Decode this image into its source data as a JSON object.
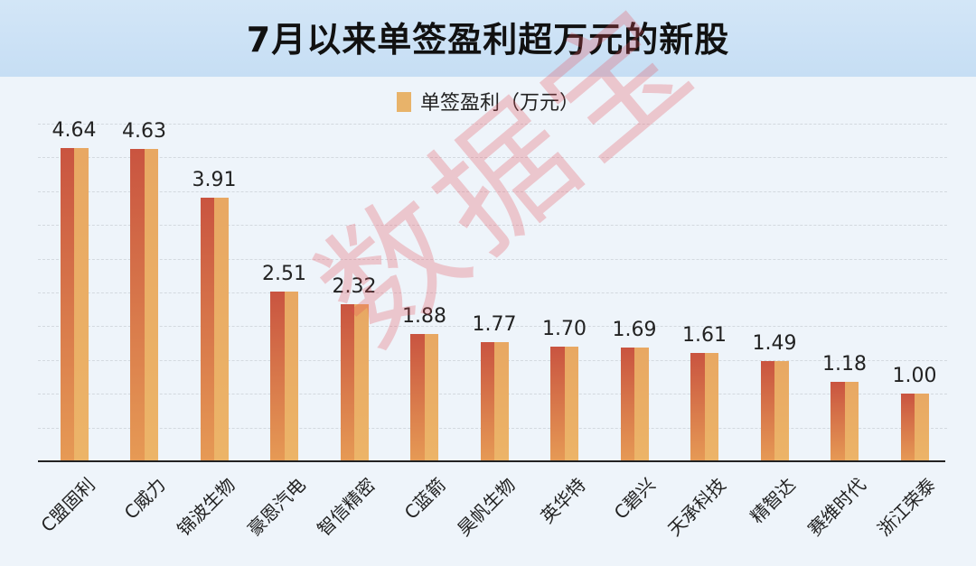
{
  "title": "7月以来单签盈利超万元的新股",
  "legend": {
    "label": "单签盈利（万元）",
    "color": "#e8b36a"
  },
  "watermark": "数据宝",
  "colors": {
    "bar_dark": "#c95440",
    "bar_light": "#ecb468",
    "header_bg": "#cfe3f6",
    "plot_bg": "#eef4fa"
  },
  "chart_data": {
    "type": "bar",
    "title": "7月以来单签盈利超万元的新股",
    "xlabel": "",
    "ylabel": "单签盈利（万元）",
    "legend": [
      "单签盈利（万元）"
    ],
    "legend_position": "top",
    "grid": true,
    "ylim": [
      0,
      5
    ],
    "categories": [
      "C盟固利",
      "C威力",
      "锦波生物",
      "豪恩汽电",
      "智信精密",
      "C蓝箭",
      "昊帆生物",
      "英华特",
      "C碧兴",
      "天承科技",
      "精智达",
      "赛维时代",
      "浙江荣泰"
    ],
    "values": [
      4.64,
      4.63,
      3.91,
      2.51,
      2.32,
      1.88,
      1.77,
      1.7,
      1.69,
      1.61,
      1.49,
      1.18,
      1.0
    ],
    "value_labels": [
      "4.64",
      "4.63",
      "3.91",
      "2.51",
      "2.32",
      "1.88",
      "1.77",
      "1.70",
      "1.69",
      "1.61",
      "1.49",
      "1.18",
      "1.00"
    ]
  }
}
